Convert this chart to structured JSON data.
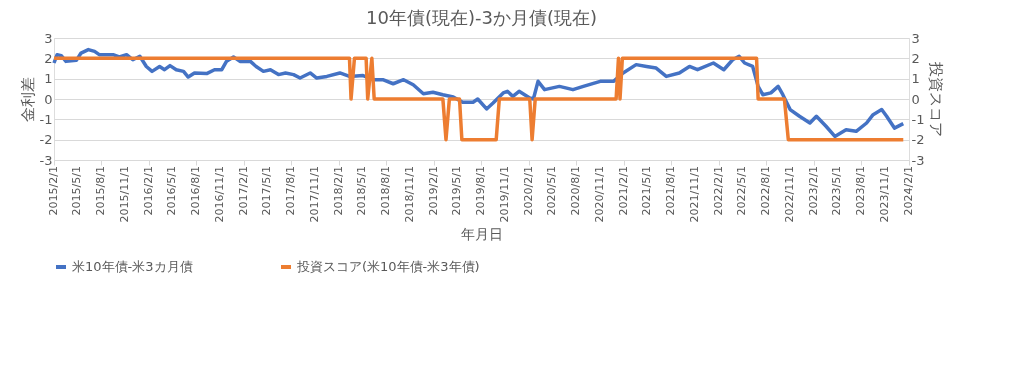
{
  "chart_data": {
    "type": "line",
    "title": "10年債(現在)-3か月債(現在)",
    "xlabel": "年月日",
    "ylabel": "金利差",
    "y2label": "投資スコア",
    "xlim": [
      "2015-02-01",
      "2024-02-01"
    ],
    "xticks": [
      {
        "value": "2015-02-01",
        "label": "2015/2/1"
      },
      {
        "value": "2015-05-01",
        "label": "2015/5/1"
      },
      {
        "value": "2015-08-01",
        "label": "2015/8/1"
      },
      {
        "value": "2015-11-01",
        "label": "2015/11/1"
      },
      {
        "value": "2016-02-01",
        "label": "2016/2/1"
      },
      {
        "value": "2016-05-01",
        "label": "2016/5/1"
      },
      {
        "value": "2016-08-01",
        "label": "2016/8/1"
      },
      {
        "value": "2016-11-01",
        "label": "2016/11/1"
      },
      {
        "value": "2017-02-01",
        "label": "2017/2/1"
      },
      {
        "value": "2017-05-01",
        "label": "2017/5/1"
      },
      {
        "value": "2017-08-01",
        "label": "2017/8/1"
      },
      {
        "value": "2017-11-01",
        "label": "2017/11/1"
      },
      {
        "value": "2018-02-01",
        "label": "2018/2/1"
      },
      {
        "value": "2018-05-01",
        "label": "2018/5/1"
      },
      {
        "value": "2018-08-01",
        "label": "2018/8/1"
      },
      {
        "value": "2018-11-01",
        "label": "2018/11/1"
      },
      {
        "value": "2019-02-01",
        "label": "2019/2/1"
      },
      {
        "value": "2019-05-01",
        "label": "2019/5/1"
      },
      {
        "value": "2019-08-01",
        "label": "2019/8/1"
      },
      {
        "value": "2019-11-01",
        "label": "2019/11/1"
      },
      {
        "value": "2020-02-01",
        "label": "2020/2/1"
      },
      {
        "value": "2020-05-01",
        "label": "2020/5/1"
      },
      {
        "value": "2020-08-01",
        "label": "2020/8/1"
      },
      {
        "value": "2020-11-01",
        "label": "2020/11/1"
      },
      {
        "value": "2021-02-01",
        "label": "2021/2/1"
      },
      {
        "value": "2021-05-01",
        "label": "2021/5/1"
      },
      {
        "value": "2021-08-01",
        "label": "2021/8/1"
      },
      {
        "value": "2021-11-01",
        "label": "2021/11/1"
      },
      {
        "value": "2022-02-01",
        "label": "2022/2/1"
      },
      {
        "value": "2022-05-01",
        "label": "2022/5/1"
      },
      {
        "value": "2022-08-01",
        "label": "2022/8/1"
      },
      {
        "value": "2022-11-01",
        "label": "2022/11/1"
      },
      {
        "value": "2023-02-01",
        "label": "2023/2/1"
      },
      {
        "value": "2023-05-01",
        "label": "2023/5/1"
      },
      {
        "value": "2023-08-01",
        "label": "2023/8/1"
      },
      {
        "value": "2023-11-01",
        "label": "2023/11/1"
      },
      {
        "value": "2024-02-01",
        "label": "2024/2/1"
      }
    ],
    "ylim": [
      -3,
      3
    ],
    "yticks": [
      -3,
      -2,
      -1,
      0,
      1,
      2,
      3
    ],
    "y2lim": [
      -3,
      3
    ],
    "y2ticks": [
      -3,
      -2,
      -1,
      0,
      1,
      2,
      3
    ],
    "grid": "y",
    "legend": "bottom",
    "marker": "none",
    "line_style": "solid",
    "series": [
      {
        "name": "米10年債-米3カ月債",
        "color": "#4472c4",
        "x": [
          "2015-02-01",
          "2015-02-13",
          "2015-03-01",
          "2015-03-19",
          "2015-04-28",
          "2015-05-16",
          "2015-06-13",
          "2015-07-07",
          "2015-07-25",
          "2015-09-16",
          "2015-10-10",
          "2015-11-07",
          "2015-12-01",
          "2015-12-28",
          "2016-01-22",
          "2016-02-13",
          "2016-03-13",
          "2016-04-01",
          "2016-04-22",
          "2016-05-16",
          "2016-06-13",
          "2016-07-01",
          "2016-07-25",
          "2016-09-10",
          "2016-10-10",
          "2016-11-07",
          "2016-11-25",
          "2016-12-22",
          "2017-01-16",
          "2017-02-25",
          "2017-03-19",
          "2017-04-16",
          "2017-05-13",
          "2017-06-13",
          "2017-07-10",
          "2017-08-10",
          "2017-09-04",
          "2017-10-13",
          "2017-11-07",
          "2017-12-16",
          "2018-02-04",
          "2018-03-13",
          "2018-05-04",
          "2018-06-13",
          "2018-07-19",
          "2018-08-28",
          "2018-10-07",
          "2018-11-13",
          "2018-12-22",
          "2019-01-28",
          "2019-03-07",
          "2019-04-16",
          "2019-05-22",
          "2019-07-01",
          "2019-07-19",
          "2019-08-22",
          "2019-09-16",
          "2019-10-25",
          "2019-11-10",
          "2019-12-01",
          "2019-12-25",
          "2020-02-04",
          "2020-02-18",
          "2020-03-07",
          "2020-04-01",
          "2020-05-28",
          "2020-07-19",
          "2020-08-28",
          "2020-11-01",
          "2020-12-22",
          "2021-01-28",
          "2021-03-19",
          "2021-04-28",
          "2021-06-04",
          "2021-07-13",
          "2021-09-01",
          "2021-10-10",
          "2021-11-10",
          "2022-01-10",
          "2022-02-19",
          "2022-03-25",
          "2022-04-19",
          "2022-05-10",
          "2022-06-10",
          "2022-07-01",
          "2022-07-19",
          "2022-08-19",
          "2022-09-16",
          "2022-10-04",
          "2022-11-01",
          "2022-12-07",
          "2023-01-16",
          "2023-02-10",
          "2023-03-19",
          "2023-04-22",
          "2023-06-04",
          "2023-07-13",
          "2023-08-22",
          "2023-09-16",
          "2023-10-19",
          "2023-11-07",
          "2023-12-07",
          "2024-01-10"
        ],
        "values": [
          1.77,
          2.18,
          2.13,
          1.85,
          1.9,
          2.26,
          2.43,
          2.34,
          2.18,
          2.18,
          2.07,
          2.18,
          1.93,
          2.1,
          1.6,
          1.36,
          1.6,
          1.44,
          1.64,
          1.44,
          1.36,
          1.08,
          1.28,
          1.25,
          1.44,
          1.44,
          1.85,
          2.07,
          1.85,
          1.85,
          1.6,
          1.36,
          1.44,
          1.2,
          1.28,
          1.2,
          1.03,
          1.28,
          1.03,
          1.11,
          1.28,
          1.11,
          1.15,
          0.95,
          0.95,
          0.75,
          0.95,
          0.7,
          0.26,
          0.33,
          0.21,
          0.1,
          -0.16,
          -0.16,
          0,
          -0.49,
          -0.2,
          0.3,
          0.38,
          0.13,
          0.38,
          0.05,
          0,
          0.87,
          0.46,
          0.62,
          0.46,
          0.62,
          0.87,
          0.87,
          1.28,
          1.69,
          1.6,
          1.52,
          1.11,
          1.28,
          1.6,
          1.44,
          1.77,
          1.44,
          1.93,
          2.1,
          1.77,
          1.6,
          0.62,
          0.21,
          0.3,
          0.62,
          0.21,
          -0.52,
          -0.85,
          -1.18,
          -0.85,
          -1.34,
          -1.84,
          -1.51,
          -1.59,
          -1.18,
          -0.77,
          -0.52,
          -0.85,
          -1.43,
          -1.21
        ]
      },
      {
        "name": "投資スコア(米10年債-米3年債)",
        "color": "#ed7d31",
        "axis": "y2",
        "x": [
          "2015-02-01",
          "2018-03-13",
          "2018-03-19",
          "2018-04-01",
          "2018-05-16",
          "2018-05-22",
          "2018-06-07",
          "2018-06-16",
          "2019-03-07",
          "2019-03-19",
          "2019-04-01",
          "2019-05-10",
          "2019-05-19",
          "2019-09-28",
          "2019-10-10",
          "2020-02-04",
          "2020-02-13",
          "2020-02-25",
          "2021-01-01",
          "2021-01-10",
          "2021-01-16",
          "2021-01-25",
          "2022-06-25",
          "2022-07-01",
          "2022-10-10",
          "2022-10-25",
          "2024-01-10"
        ],
        "values": [
          2,
          2,
          0,
          2,
          2,
          0,
          2,
          0,
          0,
          -2,
          0,
          0,
          -2,
          -2,
          0,
          0,
          -2,
          0,
          0,
          2,
          0,
          2,
          2,
          0,
          0,
          -2,
          -2
        ]
      }
    ]
  }
}
